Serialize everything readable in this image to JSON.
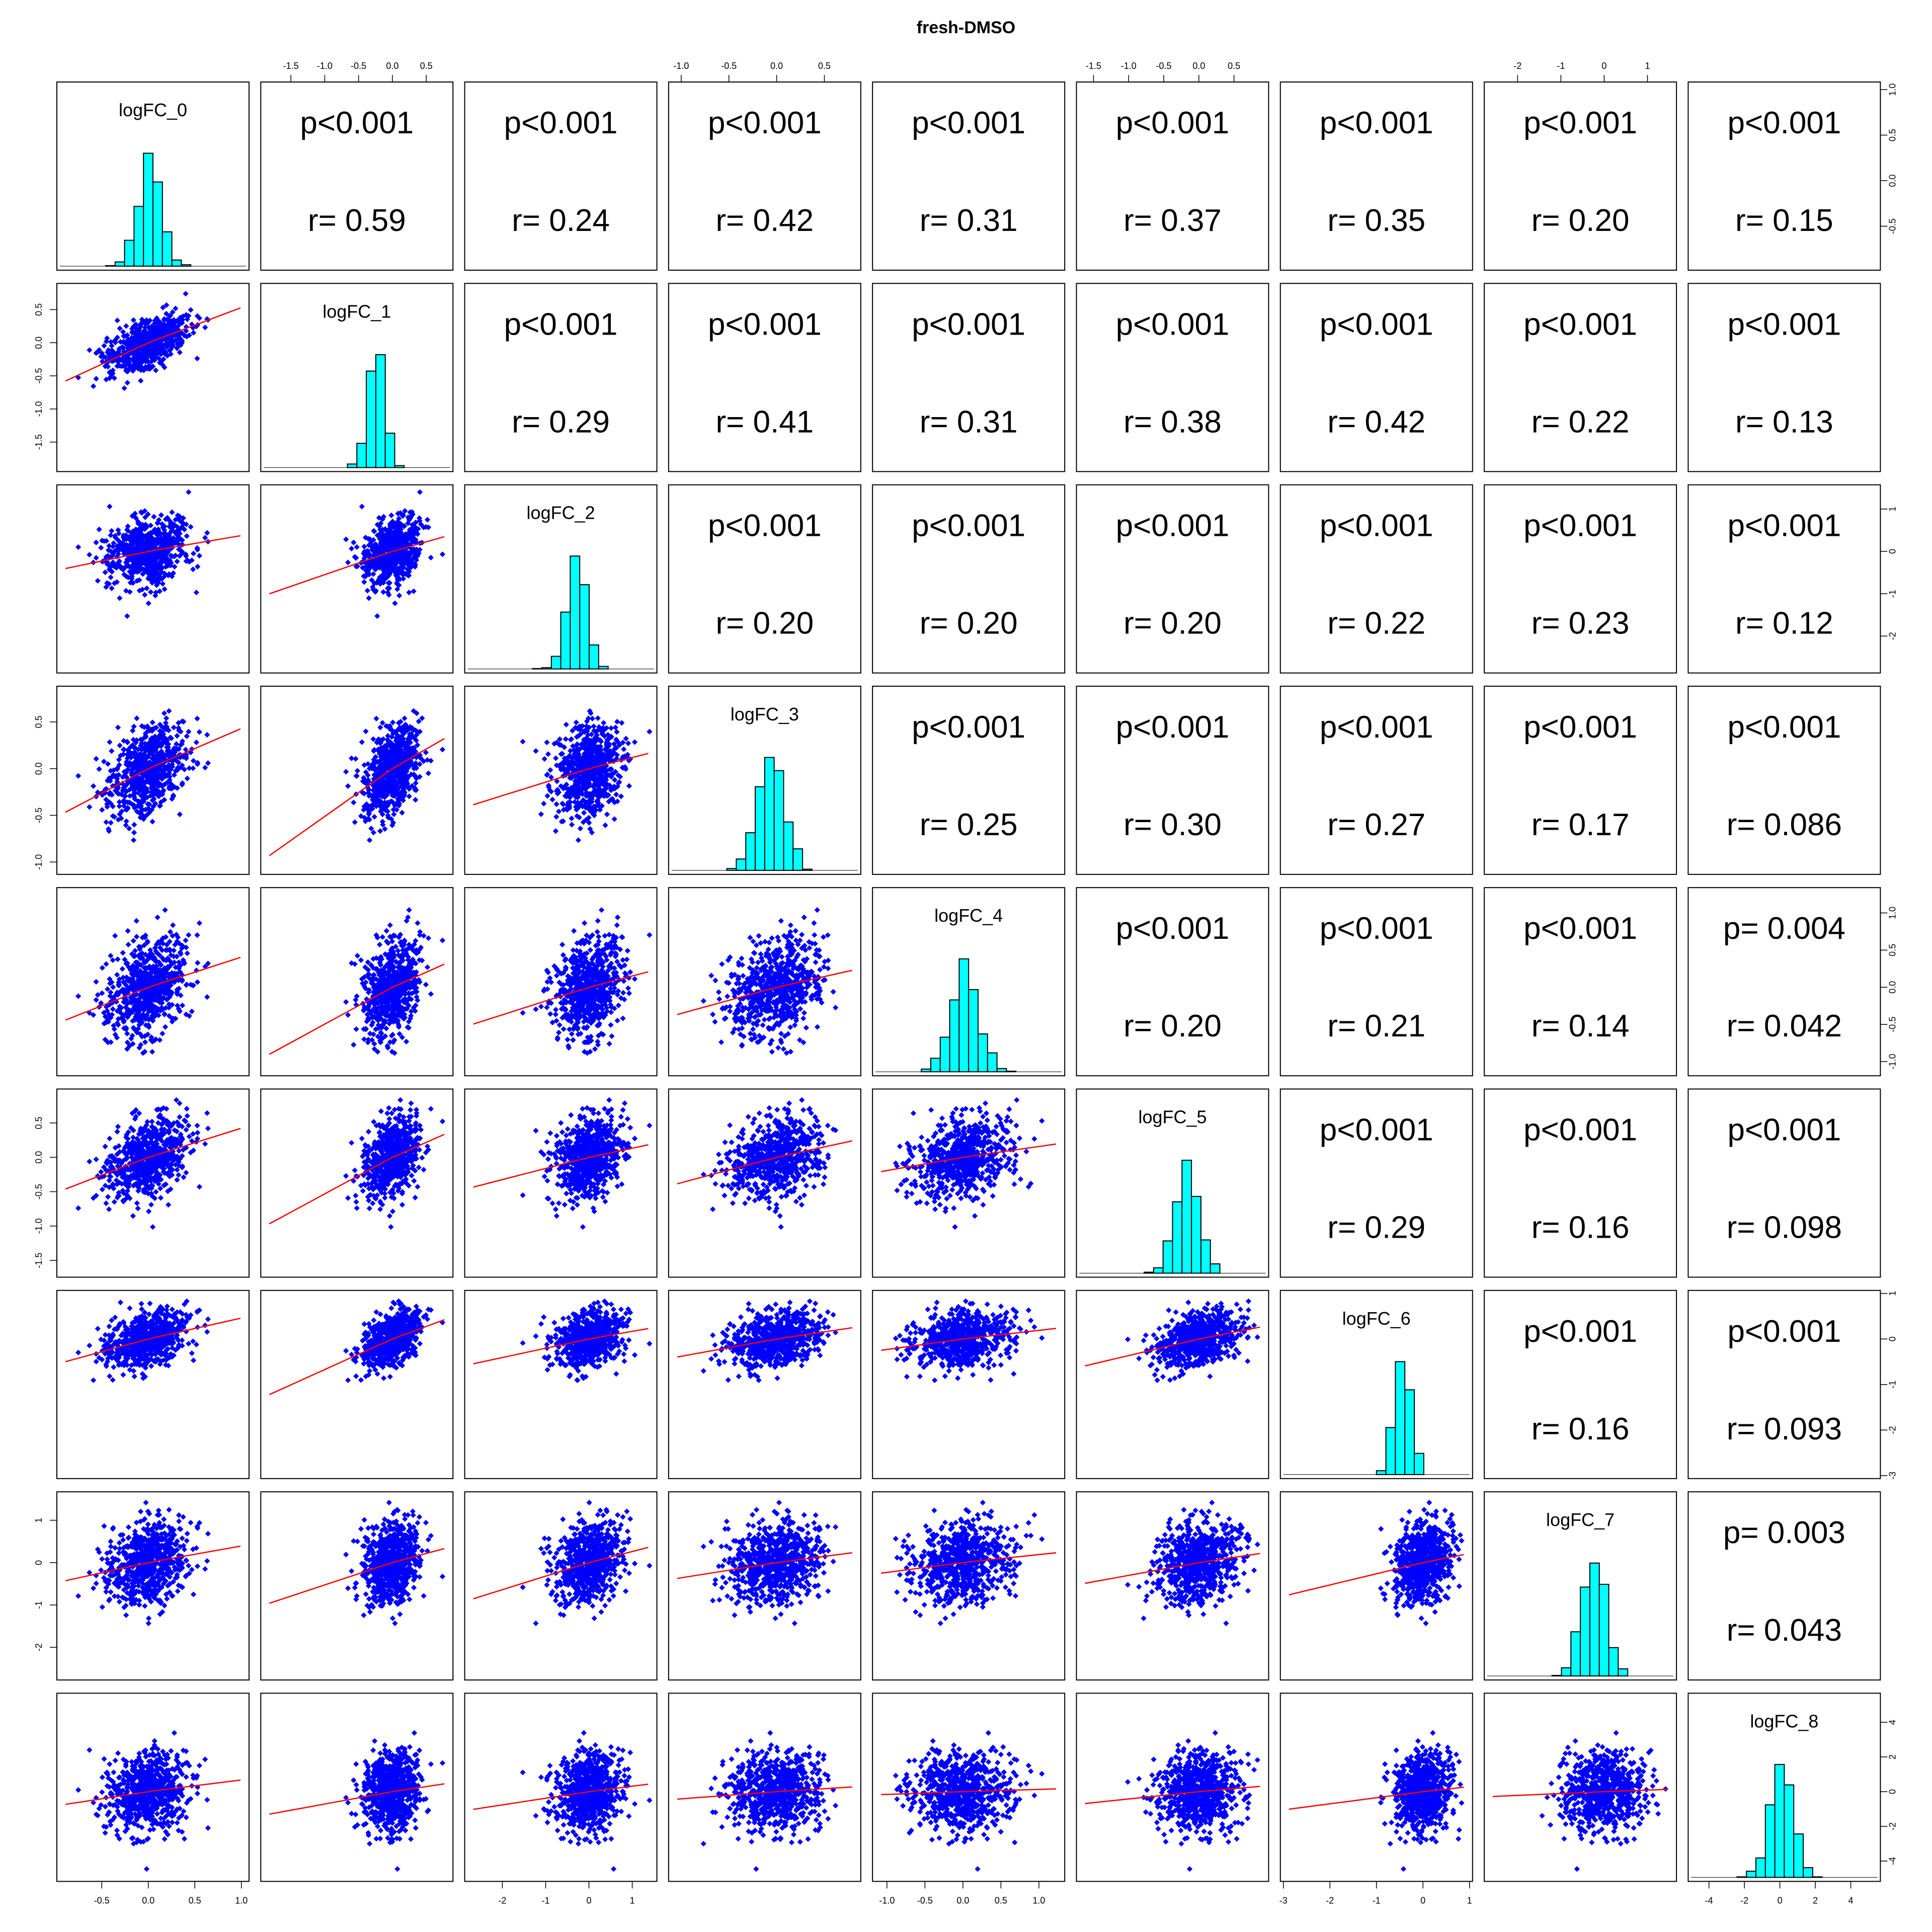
{
  "chart_data": {
    "type": "scatter-matrix",
    "title": "fresh-DMSO",
    "variables": [
      "logFC_0",
      "logFC_1",
      "logFC_2",
      "logFC_3",
      "logFC_4",
      "logFC_5",
      "logFC_6",
      "logFC_7",
      "logFC_8"
    ],
    "upper_panel_text": [
      [
        null,
        [
          "p<0.001",
          "r= 0.59"
        ],
        [
          "p<0.001",
          "r= 0.24"
        ],
        [
          "p<0.001",
          "r= 0.42"
        ],
        [
          "p<0.001",
          "r= 0.31"
        ],
        [
          "p<0.001",
          "r= 0.37"
        ],
        [
          "p<0.001",
          "r= 0.35"
        ],
        [
          "p<0.001",
          "r= 0.20"
        ],
        [
          "p<0.001",
          "r= 0.15"
        ]
      ],
      [
        null,
        null,
        [
          "p<0.001",
          "r= 0.29"
        ],
        [
          "p<0.001",
          "r= 0.41"
        ],
        [
          "p<0.001",
          "r= 0.31"
        ],
        [
          "p<0.001",
          "r= 0.38"
        ],
        [
          "p<0.001",
          "r= 0.42"
        ],
        [
          "p<0.001",
          "r= 0.22"
        ],
        [
          "p<0.001",
          "r= 0.13"
        ]
      ],
      [
        null,
        null,
        null,
        [
          "p<0.001",
          "r= 0.20"
        ],
        [
          "p<0.001",
          "r= 0.20"
        ],
        [
          "p<0.001",
          "r= 0.20"
        ],
        [
          "p<0.001",
          "r= 0.22"
        ],
        [
          "p<0.001",
          "r= 0.23"
        ],
        [
          "p<0.001",
          "r= 0.12"
        ]
      ],
      [
        null,
        null,
        null,
        null,
        [
          "p<0.001",
          "r= 0.25"
        ],
        [
          "p<0.001",
          "r= 0.30"
        ],
        [
          "p<0.001",
          "r= 0.27"
        ],
        [
          "p<0.001",
          "r= 0.17"
        ],
        [
          "p<0.001",
          "r= 0.086"
        ]
      ],
      [
        null,
        null,
        null,
        null,
        null,
        [
          "p<0.001",
          "r= 0.20"
        ],
        [
          "p<0.001",
          "r= 0.21"
        ],
        [
          "p<0.001",
          "r= 0.14"
        ],
        [
          "p= 0.004",
          "r= 0.042"
        ]
      ],
      [
        null,
        null,
        null,
        null,
        null,
        null,
        [
          "p<0.001",
          "r= 0.29"
        ],
        [
          "p<0.001",
          "r= 0.16"
        ],
        [
          "p<0.001",
          "r= 0.098"
        ]
      ],
      [
        null,
        null,
        null,
        null,
        null,
        null,
        null,
        [
          "p<0.001",
          "r= 0.16"
        ],
        [
          "p<0.001",
          "r= 0.093"
        ]
      ],
      [
        null,
        null,
        null,
        null,
        null,
        null,
        null,
        null,
        [
          "p= 0.003",
          "r= 0.043"
        ]
      ],
      [
        null,
        null,
        null,
        null,
        null,
        null,
        null,
        null,
        null
      ]
    ],
    "correlation_matrix": [
      [
        1,
        0.59,
        0.24,
        0.42,
        0.31,
        0.37,
        0.35,
        0.2,
        0.15
      ],
      [
        0.59,
        1,
        0.29,
        0.41,
        0.31,
        0.38,
        0.42,
        0.22,
        0.13
      ],
      [
        0.24,
        0.29,
        1,
        0.2,
        0.2,
        0.2,
        0.22,
        0.23,
        0.12
      ],
      [
        0.42,
        0.41,
        0.2,
        1,
        0.25,
        0.3,
        0.27,
        0.17,
        0.086
      ],
      [
        0.31,
        0.31,
        0.2,
        0.25,
        1,
        0.2,
        0.21,
        0.14,
        0.042
      ],
      [
        0.37,
        0.38,
        0.2,
        0.3,
        0.2,
        1,
        0.29,
        0.16,
        0.098
      ],
      [
        0.35,
        0.42,
        0.22,
        0.27,
        0.21,
        0.29,
        1,
        0.16,
        0.093
      ],
      [
        0.2,
        0.22,
        0.23,
        0.17,
        0.14,
        0.16,
        0.16,
        1,
        0.043
      ],
      [
        0.15,
        0.13,
        0.12,
        0.086,
        0.042,
        0.098,
        0.093,
        0.043,
        1
      ]
    ],
    "ranges": [
      [
        -0.95,
        1.05
      ],
      [
        -1.9,
        0.85
      ],
      [
        -2.8,
        1.5
      ],
      [
        -1.1,
        0.85
      ],
      [
        -1.15,
        1.3
      ],
      [
        -1.7,
        0.95
      ],
      [
        -3.0,
        1.0
      ],
      [
        -2.7,
        1.6
      ],
      [
        -5.0,
        5.5
      ]
    ],
    "sds": [
      0.22,
      0.22,
      0.38,
      0.25,
      0.32,
      0.28,
      0.32,
      0.48,
      1.1
    ],
    "top_axis_ticks": {
      "1": [
        "-1.5",
        "-1.0",
        "-0.5",
        "0.0",
        "0.5"
      ],
      "3": [
        "-1.0",
        "-0.5",
        "0.0",
        "0.5"
      ],
      "5": [
        "-1.5",
        "-1.0",
        "-0.5",
        "0.0",
        "0.5"
      ],
      "7": [
        "-2",
        "-1",
        "0",
        "1"
      ]
    },
    "bottom_axis_ticks": {
      "0": [
        "-0.5",
        "0.0",
        "0.5",
        "1.0"
      ],
      "2": [
        "-2",
        "-1",
        "0",
        "1"
      ],
      "4": [
        "-1.0",
        "-0.5",
        "0.0",
        "0.5",
        "1.0"
      ],
      "6": [
        "-3",
        "-2",
        "-1",
        "0",
        "1"
      ],
      "8": [
        "-4",
        "-2",
        "0",
        "2",
        "4"
      ]
    },
    "left_axis_ticks": {
      "1": [
        "0.5",
        "0.0",
        "-0.5",
        "-1.0",
        "-1.5"
      ],
      "3": [
        "0.5",
        "0.0",
        "-0.5",
        "-1.0"
      ],
      "5": [
        "0.5",
        "0.0",
        "-0.5",
        "-1.0",
        "-1.5"
      ],
      "7": [
        "1",
        "0",
        "-1",
        "-2"
      ]
    },
    "right_axis_ticks": {
      "0": [
        "1.0",
        "0.5",
        "0.0",
        "-0.5"
      ],
      "2": [
        "1",
        "0",
        "-1",
        "-2"
      ],
      "4": [
        "1.0",
        "0.5",
        "0.0",
        "-0.5",
        "-1.0"
      ],
      "6": [
        "1",
        "0",
        "-1",
        "-2",
        "-3"
      ],
      "8": [
        "4",
        "2",
        "0",
        "-2",
        "-4"
      ]
    },
    "colors": {
      "points": "#0000ff",
      "smooth": "#ff0000",
      "hist_fill": "#00ffff",
      "hist_border": "#000000",
      "box": "#000000"
    }
  }
}
